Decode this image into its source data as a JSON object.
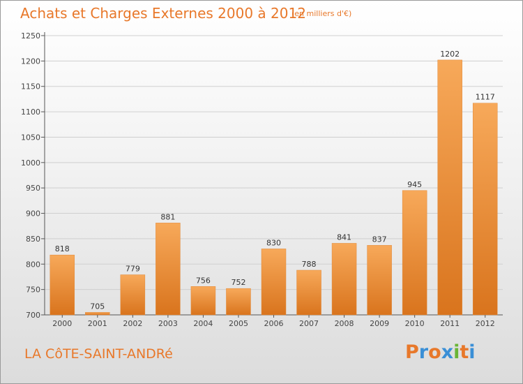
{
  "chart_data": {
    "type": "bar",
    "title": "Achats et Charges Externes 2000 à 2012",
    "subtitle": "(en milliers d'€)",
    "categories": [
      "2000",
      "2001",
      "2002",
      "2003",
      "2004",
      "2005",
      "2006",
      "2007",
      "2008",
      "2009",
      "2010",
      "2011",
      "2012"
    ],
    "values": [
      818,
      705,
      779,
      881,
      756,
      752,
      830,
      788,
      841,
      837,
      945,
      1202,
      1117
    ],
    "ylim": [
      700,
      1250
    ],
    "yticks": [
      700,
      750,
      800,
      850,
      900,
      950,
      1000,
      1050,
      1100,
      1150,
      1200,
      1250
    ],
    "xlabel": "",
    "ylabel": "",
    "grid": true,
    "bar_color_top": "#f7a95a",
    "bar_color_bottom": "#d9741d"
  },
  "footer": {
    "city": "LA CôTE-SAINT-ANDRé",
    "logo": "Proxiti",
    "logo_colors": [
      "#e8782a",
      "#3a8fd6",
      "#e8782a",
      "#3a8fd6",
      "#6ab536",
      "#e8782a",
      "#3a8fd6"
    ]
  },
  "colors": {
    "accent": "#e8782a",
    "grid": "#cfcfcf",
    "axis": "#555555"
  }
}
